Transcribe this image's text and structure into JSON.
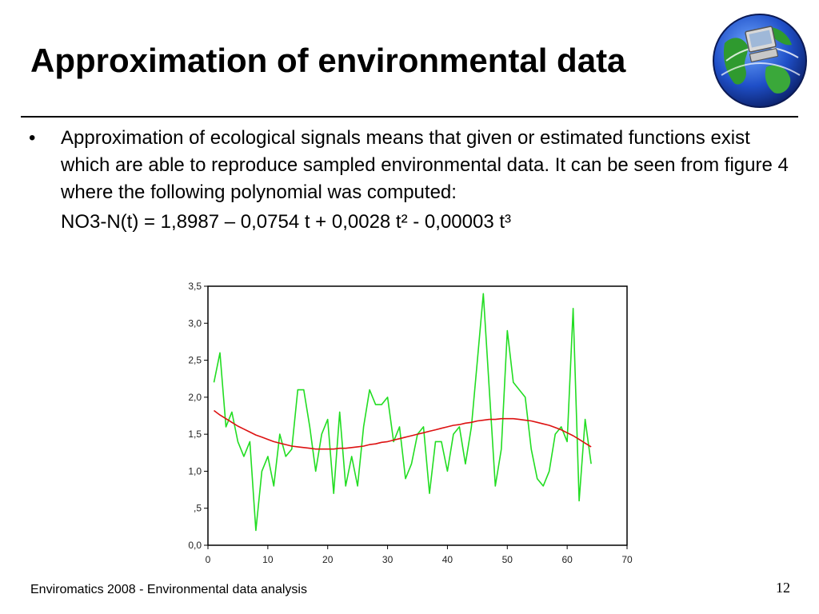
{
  "slide": {
    "title": "Approximation of environmental data",
    "bullet_marker": "•",
    "bullet_text": "Approximation of ecological signals means that given or estimated functions exist which are able to reproduce sampled environmental data. It can be seen from figure 4 where the following polynomial was computed:",
    "formula": "NO3-N(t) = 1,8987 – 0,0754 t + 0,0028 t² - 0,00003 t³",
    "footer": "Enviromatics 2008 - Environmental data analysis",
    "page_number": "12",
    "logo_icon": "globe-computer-icon"
  },
  "chart_data": {
    "type": "line",
    "title": "",
    "xlabel": "",
    "ylabel": "",
    "xlim": [
      0,
      70
    ],
    "ylim": [
      0,
      3.5
    ],
    "x_ticks": [
      "0",
      "10",
      "20",
      "30",
      "40",
      "50",
      "60",
      "70"
    ],
    "y_ticks": [
      "0,0",
      ",5",
      "1,0",
      "1,5",
      "2,0",
      "2,5",
      "3,0",
      "3,5"
    ],
    "grid": false,
    "series": [
      {
        "color": "#22dd22",
        "x": [
          1,
          2,
          3,
          4,
          5,
          6,
          7,
          8,
          9,
          10,
          11,
          12,
          13,
          14,
          15,
          16,
          17,
          18,
          19,
          20,
          21,
          22,
          23,
          24,
          25,
          26,
          27,
          28,
          29,
          30,
          31,
          32,
          33,
          34,
          35,
          36,
          37,
          38,
          39,
          40,
          41,
          42,
          43,
          44,
          45,
          46,
          47,
          48,
          49,
          50,
          51,
          52,
          53,
          54,
          55,
          56,
          57,
          58,
          59,
          60,
          61,
          62,
          63,
          64
        ],
        "y": [
          2.2,
          2.6,
          1.6,
          1.8,
          1.4,
          1.2,
          1.4,
          0.2,
          1.0,
          1.2,
          0.8,
          1.5,
          1.2,
          1.3,
          2.1,
          2.1,
          1.6,
          1.0,
          1.5,
          1.7,
          0.7,
          1.8,
          0.8,
          1.2,
          0.8,
          1.6,
          2.1,
          1.9,
          1.9,
          2.0,
          1.4,
          1.6,
          0.9,
          1.1,
          1.5,
          1.6,
          0.7,
          1.4,
          1.4,
          1.0,
          1.5,
          1.6,
          1.1,
          1.6,
          2.5,
          3.4,
          2.1,
          0.8,
          1.3,
          2.9,
          2.2,
          2.1,
          2.0,
          1.3,
          0.9,
          0.8,
          1.0,
          1.5,
          1.6,
          1.4,
          3.2,
          0.6,
          1.7,
          1.1
        ]
      },
      {
        "color": "#dd1111",
        "x": [
          1,
          2,
          3,
          4,
          5,
          6,
          7,
          8,
          9,
          10,
          11,
          12,
          13,
          14,
          15,
          16,
          17,
          18,
          19,
          20,
          21,
          22,
          23,
          24,
          25,
          26,
          27,
          28,
          29,
          30,
          31,
          32,
          33,
          34,
          35,
          36,
          37,
          38,
          39,
          40,
          41,
          42,
          43,
          44,
          45,
          46,
          47,
          48,
          49,
          50,
          51,
          52,
          53,
          54,
          55,
          56,
          57,
          58,
          59,
          60,
          61,
          62,
          63,
          64
        ],
        "y": [
          1.82,
          1.76,
          1.71,
          1.66,
          1.61,
          1.57,
          1.53,
          1.49,
          1.46,
          1.43,
          1.4,
          1.38,
          1.36,
          1.34,
          1.33,
          1.32,
          1.31,
          1.3,
          1.3,
          1.3,
          1.3,
          1.31,
          1.31,
          1.32,
          1.33,
          1.34,
          1.36,
          1.37,
          1.39,
          1.4,
          1.42,
          1.44,
          1.46,
          1.48,
          1.5,
          1.52,
          1.54,
          1.56,
          1.58,
          1.6,
          1.62,
          1.63,
          1.65,
          1.66,
          1.68,
          1.69,
          1.7,
          1.7,
          1.71,
          1.71,
          1.71,
          1.7,
          1.69,
          1.68,
          1.66,
          1.64,
          1.62,
          1.59,
          1.56,
          1.52,
          1.48,
          1.43,
          1.38,
          1.33
        ]
      }
    ]
  }
}
